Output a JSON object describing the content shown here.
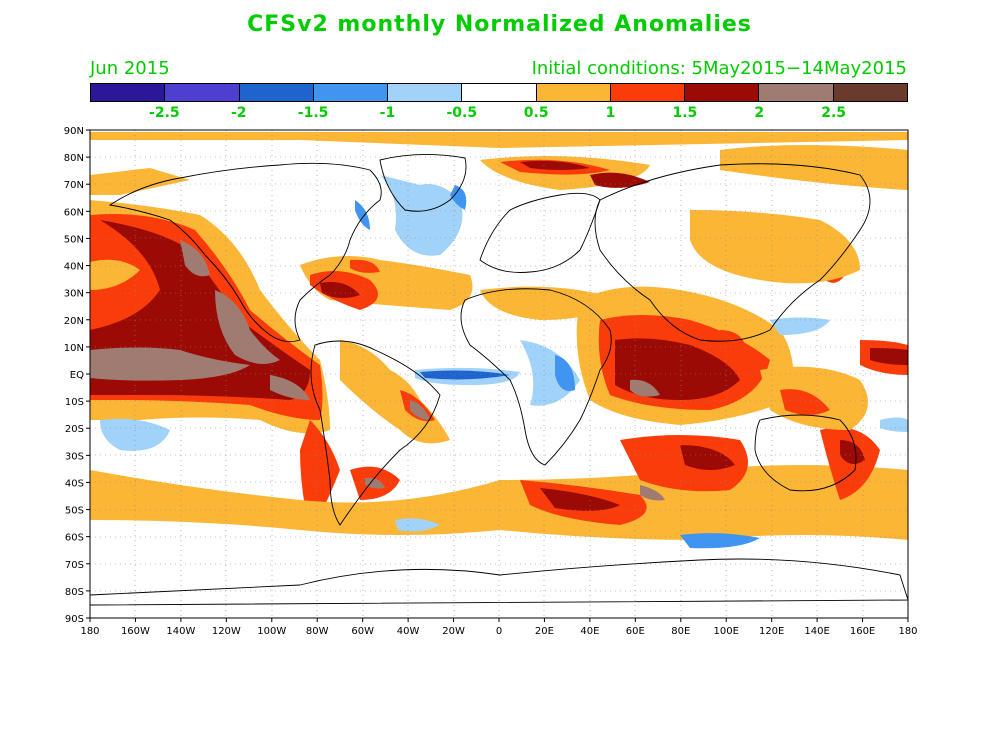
{
  "title": "CFSv2 monthly Normalized Anomalies",
  "month_label": "Jun 2015",
  "initial_conditions": "Initial conditions: 5May2015−14May2015",
  "colorbar": {
    "colors": [
      "#2b1899",
      "#4f3fd1",
      "#1f63cf",
      "#3f95f0",
      "#a0d2fa",
      "#ffffff",
      "#fbb636",
      "#fa3c0a",
      "#9b0a05",
      "#a07b72",
      "#6a3a2c"
    ],
    "labels": [
      "-2.5",
      "-2",
      "-1.5",
      "-1",
      "-0.5",
      "0.5",
      "1",
      "1.5",
      "2",
      "2.5"
    ]
  },
  "axes": {
    "lat_labels": [
      "90N",
      "80N",
      "70N",
      "60N",
      "50N",
      "40N",
      "30N",
      "20N",
      "10N",
      "EQ",
      "10S",
      "20S",
      "30S",
      "40S",
      "50S",
      "60S",
      "70S",
      "80S",
      "90S"
    ],
    "lon_labels": [
      "180",
      "160W",
      "140W",
      "120W",
      "100W",
      "80W",
      "60W",
      "40W",
      "20W",
      "0",
      "20E",
      "40E",
      "60E",
      "80E",
      "100E",
      "120E",
      "140E",
      "160E",
      "180"
    ]
  }
}
